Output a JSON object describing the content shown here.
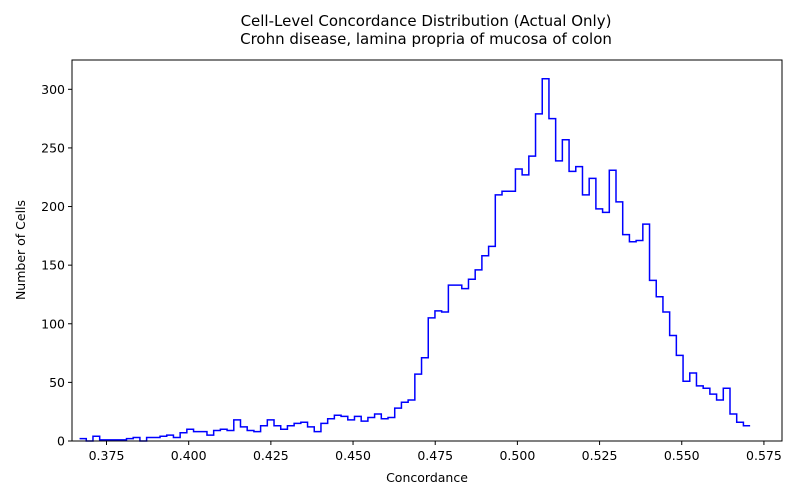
{
  "chart_data": {
    "type": "histogram-step",
    "title": "Cell-Level Concordance Distribution (Actual Only)",
    "subtitle": "Crohn disease, lamina propria of mucosa of colon",
    "xlabel": "Concordance",
    "ylabel": "Number of Cells",
    "xlim": [
      0.3645,
      0.5805
    ],
    "ylim": [
      0,
      325
    ],
    "x_ticks": [
      0.375,
      0.4,
      0.425,
      0.45,
      0.475,
      0.5,
      0.525,
      0.55,
      0.575
    ],
    "x_tick_labels": [
      "0.375",
      "0.400",
      "0.425",
      "0.450",
      "0.475",
      "0.500",
      "0.525",
      "0.550",
      "0.575"
    ],
    "y_ticks": [
      0,
      50,
      100,
      150,
      200,
      250,
      300
    ],
    "y_tick_labels": [
      "0",
      "50",
      "100",
      "150",
      "200",
      "250",
      "300"
    ],
    "line_color": "#0000ff",
    "grid": false,
    "bin_range": [
      0.3668,
      0.5708
    ],
    "counts": [
      2,
      0,
      4,
      1,
      1,
      1,
      1,
      2,
      3,
      0,
      3,
      3,
      4,
      5,
      3,
      7,
      10,
      8,
      8,
      5,
      9,
      10,
      9,
      18,
      12,
      9,
      8,
      13,
      18,
      13,
      10,
      13,
      15,
      16,
      12,
      8,
      15,
      19,
      22,
      21,
      18,
      21,
      17,
      20,
      23,
      19,
      20,
      28,
      33,
      35,
      57,
      71,
      105,
      111,
      110,
      133,
      133,
      130,
      138,
      146,
      158,
      166,
      210,
      213,
      213,
      232,
      227,
      243,
      279,
      309,
      275,
      239,
      257,
      230,
      234,
      210,
      224,
      198,
      195,
      231,
      204,
      176,
      170,
      171,
      185,
      137,
      123,
      110,
      90,
      73,
      51,
      58,
      47,
      45,
      40,
      35,
      45,
      23,
      16,
      13
    ]
  }
}
